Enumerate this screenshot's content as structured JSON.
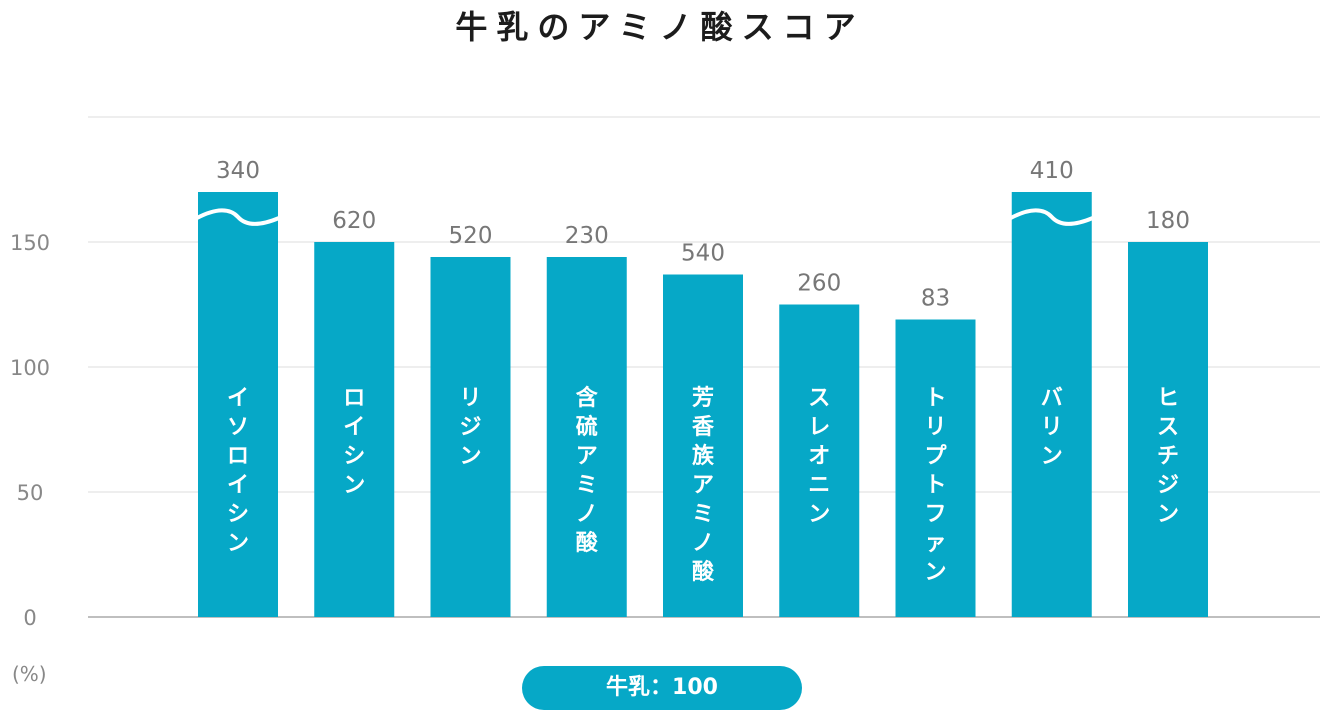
{
  "chart_data": {
    "type": "bar",
    "title": "牛乳のアミノ酸スコア",
    "categories": [
      "イソロイシン",
      "ロイシン",
      "リジン",
      "含硫アミノ酸",
      "芳香族アミノ酸",
      "スレオニン",
      "トリプトファン",
      "バリン",
      "ヒスチジン"
    ],
    "values": [
      340,
      620,
      520,
      230,
      540,
      260,
      83,
      410,
      180
    ],
    "value_labels": [
      "340",
      "620",
      "520",
      "230",
      "540",
      "260",
      "83",
      "410",
      "180"
    ],
    "displayed_values": [
      170,
      150,
      144,
      144,
      137,
      125,
      119,
      170,
      150
    ],
    "broken_axis_bars": [
      "イソロイシン",
      "バリン"
    ],
    "ylim": [
      0,
      200
    ],
    "yticks": [
      0,
      50,
      100,
      150
    ],
    "ytick_labels": [
      "0",
      "50",
      "100",
      "150"
    ],
    "y_unit": "(%)",
    "legend": "牛乳：100",
    "bar_color": "#06a8c7",
    "grid": true
  }
}
